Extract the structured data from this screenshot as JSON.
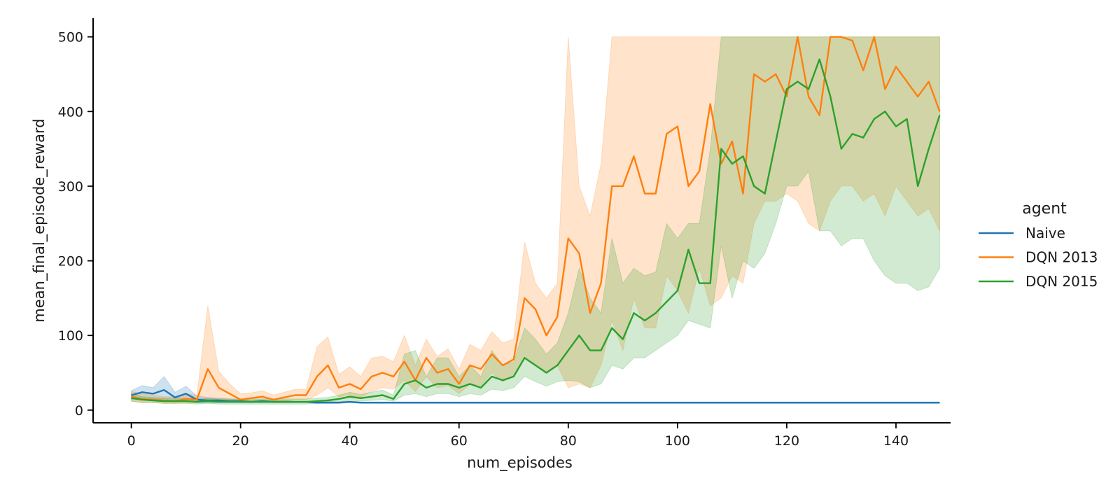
{
  "chart_data": {
    "type": "line",
    "title": "",
    "xlabel": "num_episodes",
    "ylabel": "mean_final_episode_reward",
    "xlim": [
      -7,
      150
    ],
    "ylim": [
      -17,
      525
    ],
    "xticks": [
      0,
      20,
      40,
      60,
      80,
      100,
      120,
      140
    ],
    "yticks": [
      0,
      100,
      200,
      300,
      400,
      500
    ],
    "grid": false,
    "legend": {
      "title": "agent",
      "placement": "right"
    },
    "x": [
      0,
      2,
      4,
      6,
      8,
      10,
      12,
      14,
      16,
      18,
      20,
      22,
      24,
      26,
      28,
      30,
      32,
      34,
      36,
      38,
      40,
      42,
      44,
      46,
      48,
      50,
      52,
      54,
      56,
      58,
      60,
      62,
      64,
      66,
      68,
      70,
      72,
      74,
      76,
      78,
      80,
      82,
      84,
      86,
      88,
      90,
      92,
      94,
      96,
      98,
      100,
      102,
      104,
      106,
      108,
      110,
      112,
      114,
      116,
      118,
      120,
      122,
      124,
      126,
      128,
      130,
      132,
      134,
      136,
      138,
      140,
      142,
      144,
      146,
      148
    ],
    "series": [
      {
        "name": "Naive",
        "color": "#1f77b4",
        "values": [
          20,
          24,
          22,
          27,
          17,
          22,
          14,
          13,
          13,
          12,
          12,
          11,
          12,
          11,
          11,
          11,
          11,
          10,
          10,
          10,
          11,
          10,
          10,
          10,
          10,
          10,
          10,
          10,
          10,
          10,
          10,
          10,
          10,
          10,
          10,
          10,
          10,
          10,
          10,
          10,
          10,
          10,
          10,
          10,
          10,
          10,
          10,
          10,
          10,
          10,
          10,
          10,
          10,
          10,
          10,
          10,
          10,
          10,
          10,
          10,
          10,
          10,
          10,
          10,
          10,
          10,
          10,
          10,
          10,
          10,
          10,
          10,
          10,
          10,
          10
        ],
        "lower": [
          15,
          16,
          15,
          15,
          12,
          13,
          10,
          10,
          10,
          10,
          10,
          10,
          10,
          10,
          10,
          10,
          10,
          9,
          9,
          9,
          10,
          9,
          9,
          9,
          9,
          9,
          9,
          9,
          9,
          9,
          9,
          9,
          9,
          9,
          9,
          9,
          9,
          9,
          9,
          9,
          9,
          9,
          9,
          9,
          9,
          9,
          9,
          9,
          9,
          9,
          9,
          9,
          9,
          9,
          9,
          9,
          9,
          9,
          9,
          9,
          9,
          9,
          9,
          9,
          9,
          9,
          9,
          9,
          9,
          9,
          9,
          9,
          9,
          9,
          9
        ],
        "upper": [
          26,
          33,
          30,
          45,
          24,
          32,
          19,
          17,
          16,
          15,
          14,
          13,
          14,
          13,
          13,
          12,
          12,
          12,
          12,
          11,
          12,
          11,
          11,
          11,
          11,
          11,
          11,
          11,
          11,
          11,
          11,
          11,
          11,
          11,
          11,
          11,
          11,
          11,
          11,
          11,
          11,
          11,
          11,
          11,
          11,
          11,
          11,
          11,
          11,
          11,
          11,
          11,
          11,
          11,
          11,
          11,
          11,
          11,
          11,
          11,
          11,
          11,
          11,
          11,
          11,
          11,
          11,
          11,
          11,
          11,
          11,
          11,
          11,
          11,
          11
        ]
      },
      {
        "name": "DQN 2013",
        "color": "#ff7f0e",
        "values": [
          18,
          15,
          14,
          13,
          12,
          15,
          14,
          55,
          30,
          22,
          14,
          16,
          18,
          14,
          17,
          20,
          20,
          45,
          60,
          30,
          35,
          28,
          45,
          50,
          45,
          65,
          40,
          70,
          50,
          55,
          35,
          60,
          55,
          75,
          60,
          68,
          150,
          135,
          100,
          125,
          230,
          210,
          130,
          170,
          300,
          300,
          340,
          290,
          290,
          370,
          380,
          300,
          320,
          410,
          330,
          360,
          290,
          450,
          440,
          450,
          420,
          500,
          420,
          395,
          500,
          500,
          495,
          455,
          500,
          430,
          460,
          440,
          420,
          440,
          400
        ],
        "lower": [
          12,
          10,
          10,
          9,
          9,
          10,
          10,
          15,
          14,
          12,
          10,
          11,
          12,
          10,
          12,
          14,
          14,
          20,
          30,
          18,
          20,
          17,
          25,
          30,
          28,
          40,
          25,
          45,
          30,
          33,
          22,
          35,
          33,
          50,
          38,
          45,
          70,
          60,
          50,
          60,
          30,
          35,
          30,
          60,
          120,
          80,
          150,
          110,
          110,
          180,
          160,
          130,
          190,
          140,
          150,
          180,
          170,
          250,
          280,
          280,
          290,
          280,
          250,
          240,
          280,
          300,
          300,
          280,
          290,
          260,
          300,
          280,
          260,
          270,
          240
        ],
        "upper": [
          25,
          22,
          20,
          18,
          18,
          22,
          20,
          140,
          52,
          35,
          22,
          23,
          26,
          20,
          24,
          28,
          28,
          85,
          98,
          48,
          58,
          45,
          70,
          72,
          65,
          100,
          60,
          95,
          72,
          82,
          55,
          88,
          80,
          105,
          90,
          95,
          225,
          170,
          150,
          170,
          500,
          300,
          260,
          330,
          500,
          500,
          500,
          500,
          500,
          500,
          500,
          500,
          500,
          500,
          500,
          500,
          500,
          500,
          500,
          500,
          500,
          500,
          500,
          500,
          500,
          500,
          500,
          500,
          500,
          500,
          500,
          500,
          500,
          500,
          500
        ]
      },
      {
        "name": "DQN 2015",
        "color": "#2ca02c",
        "values": [
          16,
          14,
          13,
          12,
          12,
          12,
          11,
          12,
          11,
          11,
          11,
          11,
          11,
          11,
          11,
          11,
          11,
          12,
          13,
          15,
          18,
          16,
          18,
          20,
          15,
          35,
          40,
          30,
          35,
          35,
          30,
          35,
          30,
          45,
          40,
          45,
          70,
          60,
          50,
          60,
          80,
          100,
          80,
          80,
          110,
          95,
          130,
          120,
          130,
          145,
          160,
          215,
          170,
          170,
          350,
          330,
          340,
          300,
          290,
          360,
          430,
          440,
          430,
          470,
          420,
          350,
          370,
          365,
          390,
          400,
          380,
          390,
          300,
          350,
          395
        ],
        "lower": [
          12,
          10,
          10,
          9,
          9,
          9,
          8,
          9,
          8,
          8,
          8,
          8,
          8,
          8,
          8,
          8,
          8,
          9,
          10,
          11,
          13,
          12,
          13,
          14,
          12,
          20,
          22,
          18,
          22,
          22,
          18,
          22,
          20,
          28,
          26,
          30,
          45,
          38,
          32,
          38,
          40,
          38,
          30,
          35,
          60,
          55,
          70,
          70,
          80,
          90,
          100,
          120,
          115,
          110,
          220,
          150,
          200,
          190,
          210,
          250,
          300,
          300,
          320,
          240,
          240,
          220,
          230,
          230,
          200,
          180,
          170,
          170,
          160,
          165,
          190
        ],
        "upper": [
          22,
          18,
          17,
          16,
          16,
          16,
          15,
          16,
          15,
          15,
          15,
          15,
          15,
          15,
          15,
          15,
          15,
          16,
          17,
          20,
          24,
          21,
          24,
          27,
          20,
          75,
          80,
          45,
          70,
          70,
          45,
          60,
          45,
          80,
          60,
          65,
          110,
          95,
          75,
          90,
          130,
          190,
          150,
          130,
          230,
          170,
          190,
          180,
          185,
          250,
          230,
          250,
          250,
          350,
          500,
          500,
          500,
          500,
          500,
          500,
          500,
          500,
          500,
          500,
          500,
          500,
          500,
          500,
          500,
          500,
          500,
          500,
          500,
          500,
          500
        ]
      }
    ]
  }
}
